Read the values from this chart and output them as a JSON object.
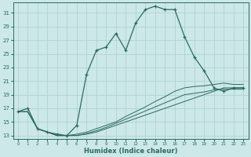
{
  "xlabel": "Humidex (Indice chaleur)",
  "bg_color": "#cce8e8",
  "line_color": "#2d6b5e",
  "grid_color": "#aacfcf",
  "xlim": [
    -0.5,
    23.5
  ],
  "ylim": [
    12.5,
    32.5
  ],
  "yticks": [
    13,
    15,
    17,
    19,
    21,
    23,
    25,
    27,
    29,
    31
  ],
  "xticks": [
    0,
    1,
    2,
    3,
    4,
    5,
    6,
    7,
    8,
    9,
    10,
    11,
    12,
    13,
    14,
    15,
    16,
    17,
    18,
    19,
    20,
    21,
    22,
    23
  ],
  "main_series": {
    "x": [
      0,
      1,
      2,
      3,
      4,
      5,
      6,
      7,
      8,
      9,
      10,
      11,
      12,
      13,
      14,
      15,
      16,
      17,
      18,
      19,
      20,
      21,
      22,
      23
    ],
    "y": [
      16.5,
      17.0,
      14.0,
      13.5,
      13.2,
      13.0,
      14.5,
      22.0,
      25.5,
      26.0,
      28.0,
      25.5,
      29.5,
      31.5,
      32.0,
      31.5,
      31.5,
      27.5,
      24.5,
      22.5,
      20.0,
      19.5,
      20.0,
      20.0
    ]
  },
  "flat_series": [
    {
      "x": [
        0,
        1,
        2,
        3,
        4,
        5,
        6,
        7,
        8,
        9,
        10,
        11,
        12,
        13,
        14,
        15,
        16,
        17,
        18,
        19,
        20,
        21,
        22,
        23
      ],
      "y": [
        16.5,
        16.5,
        14.0,
        13.5,
        13.0,
        13.0,
        13.0,
        13.2,
        13.5,
        14.0,
        14.5,
        15.0,
        15.5,
        16.0,
        16.5,
        17.0,
        17.5,
        18.0,
        18.5,
        19.0,
        19.5,
        20.0,
        20.0,
        20.0
      ]
    },
    {
      "x": [
        0,
        1,
        2,
        3,
        4,
        5,
        6,
        7,
        8,
        9,
        10,
        11,
        12,
        13,
        14,
        15,
        16,
        17,
        18,
        19,
        20,
        21,
        22,
        23
      ],
      "y": [
        16.5,
        16.5,
        14.0,
        13.5,
        13.0,
        13.0,
        13.2,
        13.5,
        14.0,
        14.5,
        15.0,
        15.8,
        16.5,
        17.2,
        18.0,
        18.7,
        19.5,
        20.0,
        20.2,
        20.3,
        20.5,
        20.7,
        20.5,
        20.5
      ]
    },
    {
      "x": [
        0,
        1,
        2,
        3,
        4,
        5,
        6,
        7,
        8,
        9,
        10,
        11,
        12,
        13,
        14,
        15,
        16,
        17,
        18,
        19,
        20,
        21,
        22,
        23
      ],
      "y": [
        16.5,
        16.5,
        14.0,
        13.5,
        13.0,
        13.0,
        13.0,
        13.3,
        13.7,
        14.2,
        14.8,
        15.4,
        16.0,
        16.6,
        17.2,
        17.8,
        18.4,
        19.0,
        19.2,
        19.4,
        19.7,
        19.8,
        19.8,
        19.8
      ]
    }
  ]
}
